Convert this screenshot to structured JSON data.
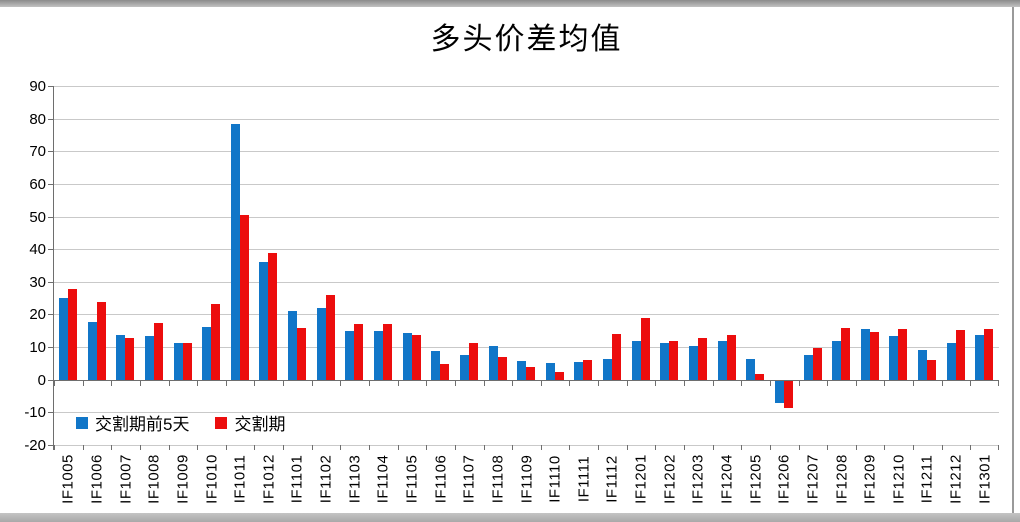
{
  "chart_data": {
    "type": "bar",
    "title": "多头价差均值",
    "categories": [
      "IF1005",
      "IF1006",
      "IF1007",
      "IF1008",
      "IF1009",
      "IF1010",
      "IF1011",
      "IF1012",
      "IF1101",
      "IF1102",
      "IF1103",
      "IF1104",
      "IF1105",
      "IF1106",
      "IF1107",
      "IF1108",
      "IF1109",
      "IF1110",
      "IF1111",
      "IF1112",
      "IF1201",
      "IF1202",
      "IF1203",
      "IF1204",
      "IF1205",
      "IF1206",
      "IF1207",
      "IF1208",
      "IF1209",
      "IF1210",
      "IF1211",
      "IF1212",
      "IF1301"
    ],
    "series": [
      {
        "name": "交割期前5天",
        "color": "#1176c8",
        "values": [
          25.0,
          17.7,
          13.9,
          13.6,
          11.3,
          16.1,
          78.3,
          36.1,
          21.0,
          22.1,
          15.1,
          14.9,
          14.4,
          8.9,
          7.6,
          10.3,
          5.8,
          5.2,
          5.5,
          6.4,
          12.1,
          11.2,
          10.3,
          11.8,
          6.5,
          -6.7,
          7.6,
          11.8,
          15.5,
          13.6,
          9.1,
          11.2,
          13.7
        ]
      },
      {
        "name": "交割期",
        "color": "#ec0d0d",
        "values": [
          27.9,
          23.9,
          13.0,
          17.6,
          11.4,
          23.4,
          50.6,
          39.0,
          16.0,
          25.9,
          17.3,
          17.3,
          13.8,
          5.0,
          11.2,
          7.0,
          4.0,
          2.4,
          6.1,
          14.0,
          19.1,
          11.8,
          13.0,
          13.9,
          1.8,
          -8.2,
          9.8,
          15.8,
          14.6,
          15.5,
          6.1,
          15.2,
          15.5
        ]
      }
    ],
    "ylim": [
      -20,
      90
    ],
    "yticks": [
      90,
      80,
      70,
      60,
      50,
      40,
      30,
      20,
      10,
      0,
      -10,
      -20
    ],
    "grid": true,
    "legend_position": "inside-bottom-left"
  }
}
